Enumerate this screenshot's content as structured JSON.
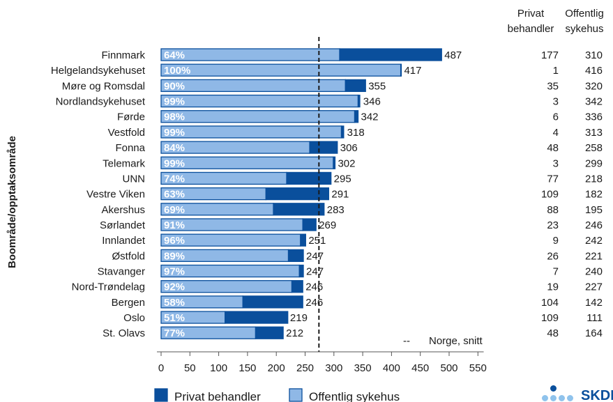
{
  "chart_data": {
    "type": "bar",
    "stacked": true,
    "orientation": "horizontal",
    "ylabel": "Boområde/opptaksområde",
    "categories": [
      "Finnmark",
      "Helgelandsykehuset",
      "Møre og Romsdal",
      "Nordlandsykehuset",
      "Førde",
      "Vestfold",
      "Fonna",
      "Telemark",
      "UNN",
      "Vestre Viken",
      "Akershus",
      "Sørlandet",
      "Innlandet",
      "Østfold",
      "Stavanger",
      "Nord-Trøndelag",
      "Bergen",
      "Oslo",
      "St. Olavs"
    ],
    "series": [
      {
        "name": "Offentlig sykehus",
        "color": "#8fb8e6",
        "values": [
          310,
          416,
          320,
          342,
          336,
          313,
          258,
          299,
          218,
          182,
          195,
          246,
          242,
          221,
          240,
          227,
          142,
          111,
          164
        ]
      },
      {
        "name": "Privat behandler",
        "color": "#0a4f9c",
        "values": [
          177,
          1,
          35,
          3,
          6,
          4,
          48,
          3,
          77,
          109,
          88,
          23,
          9,
          26,
          7,
          19,
          104,
          109,
          48
        ]
      }
    ],
    "totals": [
      487,
      417,
      355,
      346,
      342,
      318,
      306,
      302,
      295,
      291,
      283,
      269,
      251,
      247,
      247,
      246,
      246,
      219,
      212
    ],
    "percent_labels": [
      "64%",
      "100%",
      "90%",
      "99%",
      "98%",
      "99%",
      "84%",
      "99%",
      "74%",
      "63%",
      "69%",
      "91%",
      "96%",
      "89%",
      "97%",
      "92%",
      "58%",
      "51%",
      "77%"
    ],
    "xlim": [
      0,
      560
    ],
    "xticks": [
      0,
      50,
      100,
      150,
      200,
      250,
      300,
      350,
      400,
      450,
      500,
      550
    ],
    "reference_line": {
      "value": 274,
      "label": "Norge, snitt",
      "legend_symbol": "--"
    },
    "table_columns": [
      {
        "header_line1": "Privat",
        "header_line2": "behandler"
      },
      {
        "header_line1": "Offentlig",
        "header_line2": "sykehus"
      }
    ],
    "legend": {
      "position": "bottom-left",
      "items": [
        "Privat behandler",
        "Offentlig sykehus"
      ]
    }
  },
  "logo_text": "SKDE"
}
